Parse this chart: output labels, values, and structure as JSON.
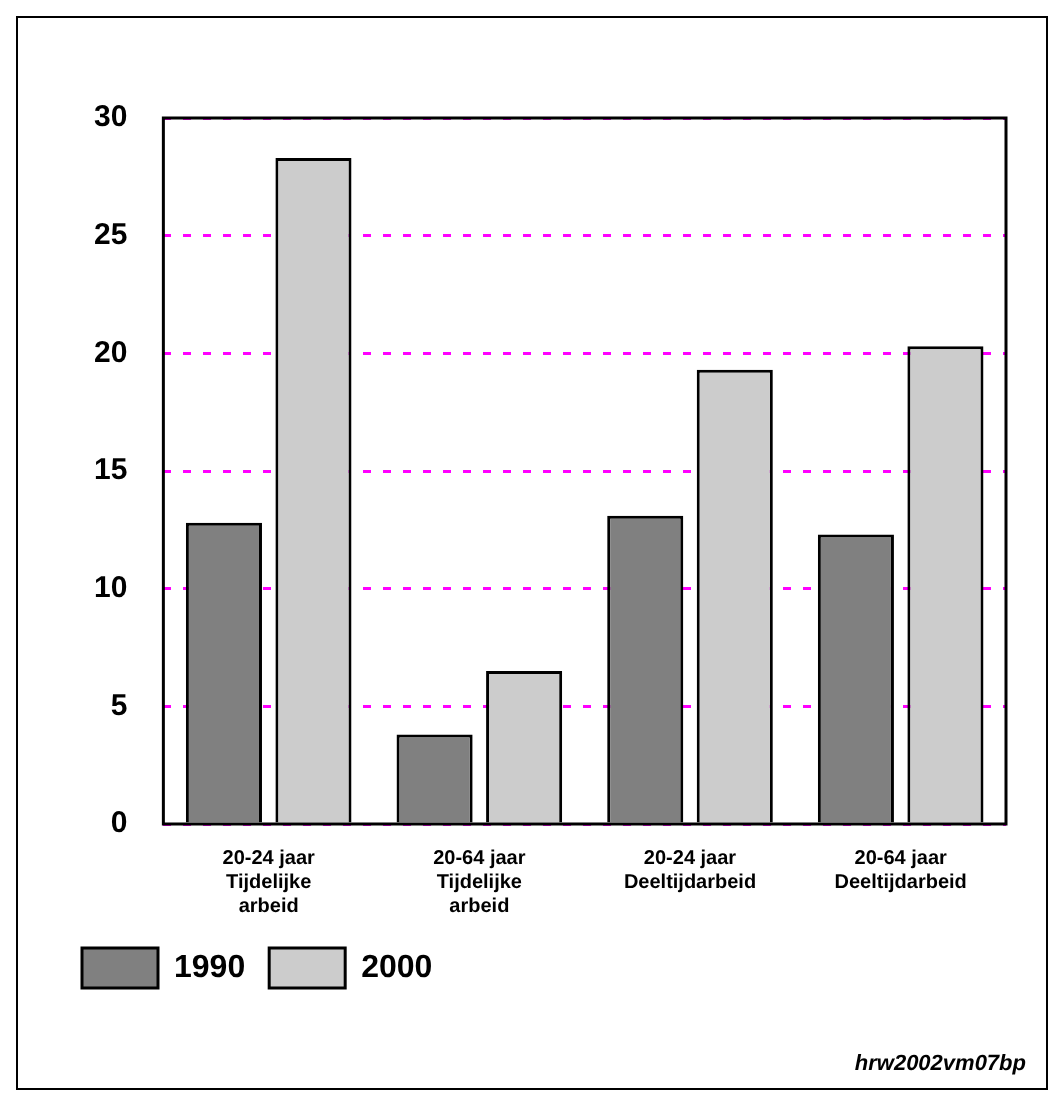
{
  "chart_data": {
    "type": "bar",
    "categories": [
      "20-24 jaar\nTijdelijke\narbeid",
      "20-64 jaar\nTijdelijke\narbeid",
      "20-24 jaar\nDeeltijdarbeid",
      "20-64 jaar\nDeeltijdarbeid"
    ],
    "series": [
      {
        "name": "1990",
        "color": "#808080",
        "values": [
          12.8,
          3.8,
          13.1,
          12.3
        ]
      },
      {
        "name": "2000",
        "color": "#cccccc",
        "values": [
          28.3,
          6.5,
          19.3,
          20.3
        ]
      }
    ],
    "ylim": [
      0,
      30
    ],
    "yticks": [
      0,
      5,
      10,
      15,
      20,
      25,
      30
    ],
    "grid": "y",
    "legend": "bottom left",
    "annotations": [
      "hrw2002vm07bp"
    ]
  }
}
